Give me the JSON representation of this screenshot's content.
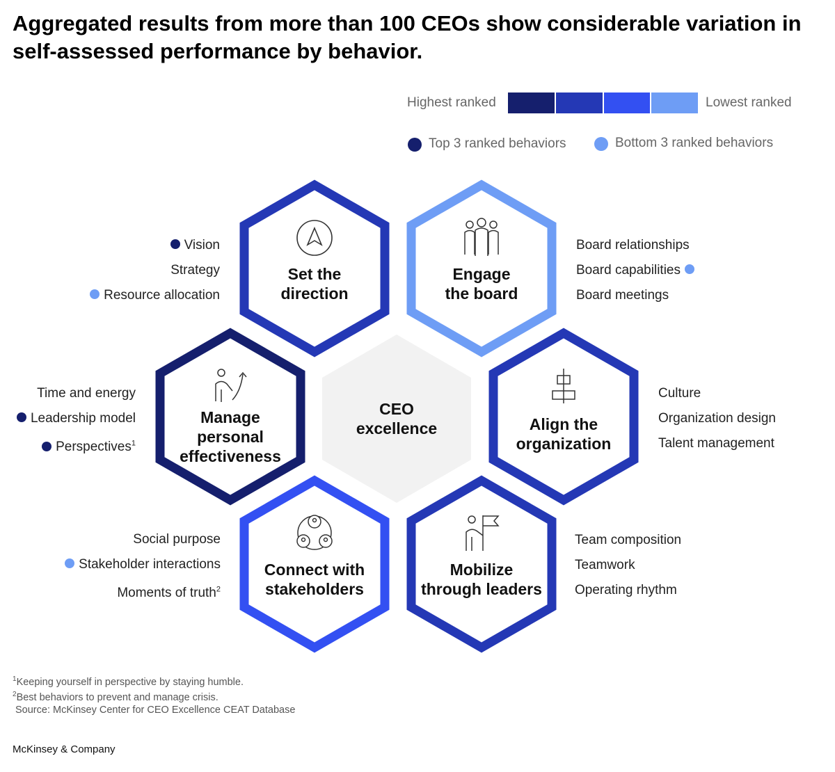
{
  "title": "Aggregated results from more than 100 CEOs show considerable variation in self-assessed performance by behavior.",
  "scale": {
    "high_label": "Highest ranked",
    "low_label": "Lowest ranked",
    "colors": [
      "#151f6d",
      "#2438b5",
      "#3350f2",
      "#6e9df5"
    ]
  },
  "legend": {
    "top3_label": "Top 3 ranked behaviors",
    "top3_color": "#151f6d",
    "bottom3_label": "Bottom 3 ranked behaviors",
    "bottom3_color": "#6e9df5"
  },
  "center": {
    "line1": "CEO",
    "line2": "excellence",
    "color": "#f2f2f2"
  },
  "hexes": {
    "direction": {
      "title1": "Set the",
      "title2": "direction",
      "icon": "compass-arrow-icon",
      "color": "#2438b5",
      "items": [
        {
          "label": "Vision",
          "dot": "top"
        },
        {
          "label": "Strategy",
          "dot": ""
        },
        {
          "label": "Resource allocation",
          "dot": "bottom"
        }
      ]
    },
    "board": {
      "title1": "Engage",
      "title2": "the board",
      "icon": "people-group-icon",
      "color": "#6e9df5",
      "items": [
        {
          "label": "Board relationships",
          "dot": ""
        },
        {
          "label": "Board capabilities",
          "dot": "bottom"
        },
        {
          "label": "Board meetings",
          "dot": ""
        }
      ]
    },
    "personal": {
      "title1": "Manage",
      "title2": "personal",
      "title3": "effectiveness",
      "icon": "person-growth-icon",
      "color": "#151f6d",
      "items": [
        {
          "label": "Time and energy",
          "dot": ""
        },
        {
          "label": "Leadership model",
          "dot": "top"
        },
        {
          "label": "Perspectives",
          "sup": "1",
          "dot": "top"
        }
      ]
    },
    "organization": {
      "title1": "Align the",
      "title2": "organization",
      "icon": "org-chart-icon",
      "color": "#2438b5",
      "items": [
        {
          "label": "Culture",
          "dot": ""
        },
        {
          "label": "Organization design",
          "dot": ""
        },
        {
          "label": "Talent management",
          "dot": ""
        }
      ]
    },
    "stakeholders": {
      "title1": "Connect with",
      "title2": "stakeholders",
      "icon": "stakeholder-network-icon",
      "color": "#3350f2",
      "items": [
        {
          "label": "Social purpose",
          "dot": ""
        },
        {
          "label": "Stakeholder interactions",
          "dot": "bottom"
        },
        {
          "label": "Moments of truth",
          "sup": "2",
          "dot": ""
        }
      ]
    },
    "leaders": {
      "title1": "Mobilize",
      "title2": "through leaders",
      "icon": "person-flag-icon",
      "color": "#2438b5",
      "items": [
        {
          "label": "Team composition",
          "dot": ""
        },
        {
          "label": "Teamwork",
          "dot": ""
        },
        {
          "label": "Operating rhythm",
          "dot": ""
        }
      ]
    }
  },
  "footnotes": {
    "note1_mark": "1",
    "note1": "Keeping yourself in perspective by staying humble.",
    "note2_mark": "2",
    "note2": "Best behaviors to prevent and manage crisis.",
    "source": "Source: McKinsey Center for CEO Excellence CEAT Database"
  },
  "brand": "McKinsey & Company"
}
